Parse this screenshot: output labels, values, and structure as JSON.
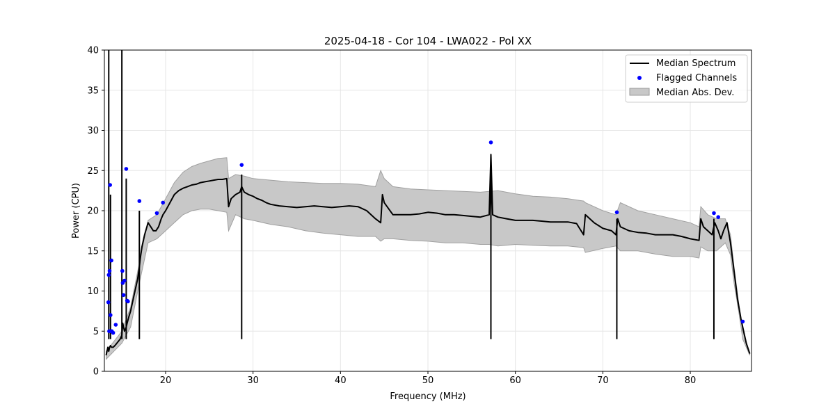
{
  "chart_data": {
    "type": "line",
    "title": "2025-04-18 - Cor 104 - LWA022 - Pol XX",
    "xlabel": "Frequency (MHz)",
    "ylabel": "Power (CPU)",
    "xlim": [
      13,
      87
    ],
    "ylim": [
      0,
      40
    ],
    "xticks": [
      20,
      30,
      40,
      50,
      60,
      70,
      80
    ],
    "yticks": [
      0,
      5,
      10,
      15,
      20,
      25,
      30,
      35,
      40
    ],
    "xtick_labels": [
      "20",
      "30",
      "40",
      "50",
      "60",
      "70",
      "80"
    ],
    "ytick_labels": [
      "0",
      "5",
      "10",
      "15",
      "20",
      "25",
      "30",
      "35",
      "40"
    ],
    "grid": true,
    "legend_position": "top-right",
    "legend": [
      {
        "label": "Median Spectrum",
        "kind": "line",
        "color": "#000000"
      },
      {
        "label": "Flagged Channels",
        "kind": "marker",
        "color": "#0000ff"
      },
      {
        "label": "Median Abs. Dev.",
        "kind": "patch",
        "color": "#c8c8c8"
      }
    ],
    "series": [
      {
        "name": "Median Spectrum",
        "color": "#000000",
        "x": [
          13.2,
          13.4,
          13.5,
          13.6,
          13.7,
          13.8,
          14.0,
          14.2,
          14.5,
          14.8,
          15.0,
          15.1,
          15.3,
          15.5,
          15.6,
          15.8,
          16.0,
          16.2,
          16.5,
          16.8,
          17.0,
          17.1,
          17.3,
          17.6,
          18.0,
          18.3,
          18.6,
          18.9,
          19.2,
          19.5,
          19.7,
          20.0,
          20.5,
          21.0,
          21.5,
          22.0,
          22.5,
          23.0,
          23.5,
          24.0,
          24.5,
          25.0,
          25.5,
          26.0,
          26.5,
          27.0,
          27.2,
          27.5,
          28.0,
          28.5,
          28.7,
          29.0,
          29.5,
          30.0,
          30.5,
          31.0,
          31.5,
          32.0,
          33.0,
          34.0,
          35.0,
          36.0,
          37.0,
          38.0,
          39.0,
          40.0,
          41.0,
          42.0,
          43.0,
          44.0,
          44.6,
          44.8,
          45.0,
          46.0,
          47.0,
          48.0,
          49.0,
          50.0,
          51.0,
          52.0,
          53.0,
          54.0,
          55.0,
          56.0,
          57.0,
          57.2,
          57.4,
          58.0,
          59.0,
          60.0,
          61.0,
          62.0,
          63.0,
          64.0,
          65.0,
          66.0,
          67.0,
          67.8,
          68.0,
          69.0,
          70.0,
          71.0,
          71.5,
          71.7,
          72.0,
          73.0,
          74.0,
          75.0,
          76.0,
          77.0,
          78.0,
          79.0,
          80.0,
          81.0,
          81.2,
          81.5,
          82.0,
          82.5,
          82.8,
          83.2,
          83.5,
          83.8,
          84.2,
          84.6,
          85.0,
          85.4,
          85.8,
          86.0,
          86.4,
          86.8
        ],
        "y": [
          2.0,
          3.0,
          2.5,
          3.0,
          3.2,
          3.0,
          3.0,
          3.2,
          3.6,
          4.0,
          4.5,
          6.0,
          5.0,
          5.5,
          6.0,
          6.8,
          7.5,
          8.5,
          10.0,
          11.5,
          13.0,
          14.0,
          15.5,
          17.0,
          18.5,
          18.0,
          17.5,
          17.5,
          18.0,
          19.0,
          19.5,
          20.0,
          21.0,
          22.0,
          22.5,
          22.8,
          23.0,
          23.2,
          23.3,
          23.5,
          23.6,
          23.7,
          23.8,
          23.9,
          23.9,
          24.0,
          20.5,
          21.5,
          22.0,
          22.3,
          23.0,
          22.3,
          22.0,
          21.8,
          21.5,
          21.3,
          21.0,
          20.8,
          20.6,
          20.5,
          20.4,
          20.5,
          20.6,
          20.5,
          20.4,
          20.5,
          20.6,
          20.5,
          20.0,
          19.0,
          18.5,
          22.0,
          21.0,
          19.5,
          19.5,
          19.5,
          19.6,
          19.8,
          19.7,
          19.5,
          19.5,
          19.4,
          19.3,
          19.2,
          19.5,
          27.0,
          19.5,
          19.2,
          19.0,
          18.8,
          18.8,
          18.8,
          18.7,
          18.6,
          18.6,
          18.6,
          18.4,
          17.0,
          19.5,
          18.5,
          17.8,
          17.5,
          17.0,
          19.0,
          18.0,
          17.5,
          17.3,
          17.2,
          17.0,
          17.0,
          17.0,
          16.8,
          16.5,
          16.3,
          19.0,
          18.0,
          17.5,
          17.0,
          18.5,
          17.5,
          16.5,
          17.5,
          18.5,
          16.0,
          12.5,
          9.0,
          6.5,
          5.5,
          3.5,
          2.2
        ]
      },
      {
        "name": "Median Abs. Dev.",
        "color": "#c8c8c8",
        "x": [
          13.2,
          14.0,
          15.0,
          16.0,
          17.0,
          18.0,
          19.0,
          20.0,
          21.0,
          22.0,
          23.0,
          24.0,
          25.0,
          26.0,
          27.0,
          27.2,
          28.0,
          29.0,
          30.0,
          32.0,
          34.0,
          36.0,
          38.0,
          40.0,
          42.0,
          44.0,
          44.6,
          45.0,
          46.0,
          48.0,
          50.0,
          52.0,
          54.0,
          56.0,
          57.0,
          58.0,
          60.0,
          62.0,
          64.0,
          66.0,
          67.8,
          68.0,
          70.0,
          71.5,
          72.0,
          74.0,
          76.0,
          78.0,
          80.0,
          81.0,
          81.2,
          82.0,
          83.0,
          84.0,
          84.6,
          85.0,
          85.6,
          86.0,
          86.8
        ],
        "y_upper": [
          2.5,
          3.6,
          5.0,
          8.0,
          13.5,
          18.8,
          19.5,
          21.5,
          23.5,
          24.8,
          25.5,
          25.9,
          26.2,
          26.5,
          26.6,
          24.0,
          24.5,
          24.3,
          24.0,
          23.8,
          23.6,
          23.5,
          23.4,
          23.4,
          23.3,
          23.0,
          25.0,
          24.0,
          23.0,
          22.7,
          22.6,
          22.5,
          22.4,
          22.3,
          22.4,
          22.5,
          22.1,
          21.8,
          21.7,
          21.5,
          21.2,
          21.0,
          20.0,
          19.5,
          21.0,
          20.0,
          19.5,
          19.0,
          18.5,
          18.0,
          20.5,
          19.5,
          19.0,
          19.0,
          17.0,
          13.0,
          8.0,
          5.0,
          2.2
        ],
        "y_lower": [
          1.5,
          2.4,
          3.5,
          5.5,
          11.0,
          16.0,
          16.5,
          17.5,
          18.5,
          19.5,
          20.0,
          20.2,
          20.2,
          20.0,
          19.8,
          17.5,
          19.5,
          19.0,
          18.8,
          18.3,
          18.0,
          17.5,
          17.2,
          17.0,
          16.8,
          16.8,
          16.2,
          16.5,
          16.5,
          16.3,
          16.2,
          16.0,
          16.0,
          15.8,
          15.8,
          15.6,
          15.8,
          15.7,
          15.6,
          15.6,
          15.4,
          14.8,
          15.3,
          15.6,
          15.0,
          15.0,
          14.6,
          14.3,
          14.3,
          14.1,
          15.5,
          15.0,
          15.0,
          16.0,
          14.5,
          11.0,
          7.0,
          4.0,
          2.0
        ]
      },
      {
        "name": "Flagged Channels",
        "color": "#0000ff",
        "x": [
          13.45,
          13.5,
          13.55,
          13.6,
          13.65,
          13.7,
          13.75,
          13.8,
          13.85,
          14.0,
          14.3,
          15.05,
          15.1,
          15.2,
          15.3,
          15.5,
          15.6,
          15.7,
          17.0,
          19.0,
          19.7,
          28.7,
          57.2,
          71.6,
          82.7,
          83.2,
          86.0
        ],
        "y": [
          8.6,
          12.0,
          5.0,
          12.5,
          23.2,
          7.0,
          5.0,
          13.8,
          5.0,
          4.8,
          5.8,
          12.5,
          11.0,
          9.5,
          11.3,
          25.2,
          8.8,
          8.7,
          21.2,
          19.7,
          21.0,
          25.7,
          28.5,
          19.8,
          19.7,
          19.2,
          6.2
        ]
      }
    ],
    "spikes": [
      {
        "x": 13.5,
        "y": 40
      },
      {
        "x": 13.7,
        "y": 22
      },
      {
        "x": 15.0,
        "y": 40
      },
      {
        "x": 15.5,
        "y": 24
      },
      {
        "x": 17.0,
        "y": 20
      },
      {
        "x": 28.7,
        "y": 24.5
      },
      {
        "x": 57.2,
        "y": 27.0
      },
      {
        "x": 71.6,
        "y": 19.0
      },
      {
        "x": 82.7,
        "y": 19.0
      }
    ]
  }
}
